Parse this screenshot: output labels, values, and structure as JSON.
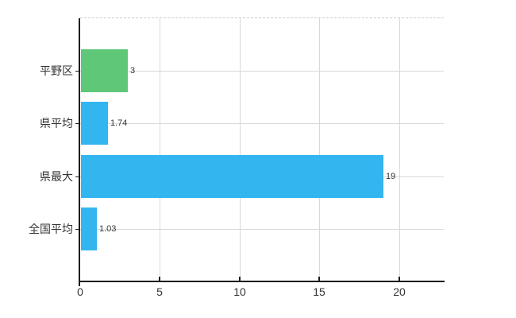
{
  "chart_data": {
    "type": "bar",
    "orientation": "horizontal",
    "title": "",
    "xlabel": "",
    "ylabel": "",
    "categories": [
      "平野区",
      "県平均",
      "県最大",
      "全国平均"
    ],
    "values": [
      3,
      1.74,
      19,
      1.03
    ],
    "value_labels": [
      "3",
      "1.74",
      "19",
      "1.03"
    ],
    "bar_colors": [
      "#5fc878",
      "#33b6f0",
      "#33b6f0",
      "#33b6f0"
    ],
    "x_ticks": [
      0,
      5,
      10,
      15,
      20
    ],
    "x_tick_labels": [
      "0",
      "5",
      "10",
      "15",
      "20"
    ],
    "xlim": [
      0,
      22.8
    ],
    "grid": true,
    "legend": "none",
    "colors": {
      "background": "#ffffff",
      "grid": "#d9d9d9",
      "top_border": "#cccccc",
      "axis": "#1c1c1c",
      "text": "#333333"
    }
  }
}
